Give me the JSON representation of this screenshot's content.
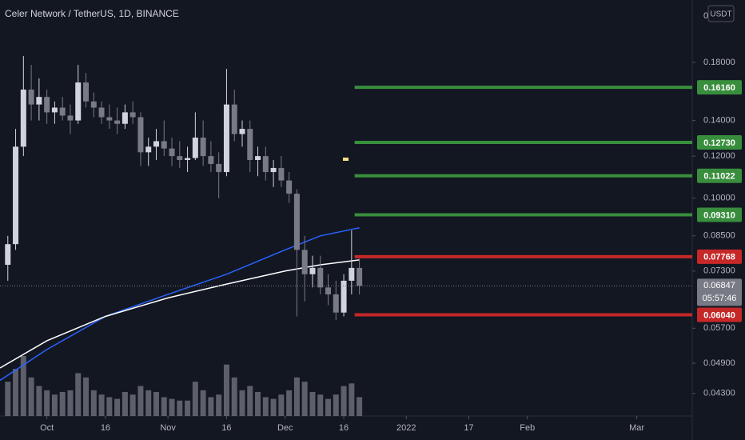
{
  "chart_data": {
    "type": "candlestick",
    "title": "Celer Network / TetherUS, 1D, BINANCE",
    "price_axis_unit": "USDT",
    "axis_top_label": "0",
    "log_scale": true,
    "ylim": [
      0.039,
      0.2357
    ],
    "yticks": [
      {
        "value": 0.18,
        "label": "0.18000"
      },
      {
        "value": 0.14,
        "label": "0.14000"
      },
      {
        "value": 0.12,
        "label": "0.12000"
      },
      {
        "value": 0.1,
        "label": "0.10000"
      },
      {
        "value": 0.085,
        "label": "0.08500"
      },
      {
        "value": 0.073,
        "label": "0.07300"
      },
      {
        "value": 0.057,
        "label": "0.05700"
      },
      {
        "value": 0.049,
        "label": "0.04900"
      },
      {
        "value": 0.043,
        "label": "0.04300"
      }
    ],
    "xlim": [
      "2021-09-19",
      "2022-03-15"
    ],
    "xticks": [
      {
        "value": "2021-10-01",
        "label": "Oct"
      },
      {
        "value": "2021-10-16",
        "label": "16"
      },
      {
        "value": "2021-11-01",
        "label": "Nov"
      },
      {
        "value": "2021-11-16",
        "label": "16"
      },
      {
        "value": "2021-12-01",
        "label": "Dec"
      },
      {
        "value": "2021-12-16",
        "label": "16"
      },
      {
        "value": "2022-01-01",
        "label": "2022"
      },
      {
        "value": "2022-01-17",
        "label": "17"
      },
      {
        "value": "2022-02-01",
        "label": "Feb"
      },
      {
        "value": "2022-03-01",
        "label": "Mar"
      }
    ],
    "up_color": "#d1d4dc",
    "down_color": "#787b86",
    "volume_color": "#5d606b",
    "x": [
      "2021-09-21",
      "2021-09-23",
      "2021-09-25",
      "2021-09-27",
      "2021-09-29",
      "2021-10-01",
      "2021-10-03",
      "2021-10-05",
      "2021-10-07",
      "2021-10-09",
      "2021-10-11",
      "2021-10-13",
      "2021-10-15",
      "2021-10-17",
      "2021-10-19",
      "2021-10-21",
      "2021-10-23",
      "2021-10-25",
      "2021-10-27",
      "2021-10-29",
      "2021-10-31",
      "2021-11-02",
      "2021-11-04",
      "2021-11-06",
      "2021-11-08",
      "2021-11-10",
      "2021-11-12",
      "2021-11-14",
      "2021-11-16",
      "2021-11-18",
      "2021-11-20",
      "2021-11-22",
      "2021-11-24",
      "2021-11-26",
      "2021-11-28",
      "2021-11-30",
      "2021-12-02",
      "2021-12-04",
      "2021-12-06",
      "2021-12-08",
      "2021-12-10",
      "2021-12-12",
      "2021-12-14",
      "2021-12-16",
      "2021-12-18",
      "2021-12-20"
    ],
    "open": [
      0.075,
      0.082,
      0.125,
      0.16,
      0.15,
      0.155,
      0.145,
      0.148,
      0.143,
      0.14,
      0.165,
      0.152,
      0.148,
      0.142,
      0.14,
      0.138,
      0.145,
      0.142,
      0.122,
      0.125,
      0.128,
      0.124,
      0.12,
      0.118,
      0.119,
      0.13,
      0.12,
      0.116,
      0.112,
      0.15,
      0.132,
      0.135,
      0.118,
      0.12,
      0.112,
      0.114,
      0.108,
      0.102,
      0.08,
      0.072,
      0.074,
      0.068,
      0.066,
      0.061,
      0.07,
      0.074
    ],
    "high": [
      0.085,
      0.135,
      0.185,
      0.178,
      0.168,
      0.16,
      0.152,
      0.155,
      0.15,
      0.178,
      0.172,
      0.158,
      0.152,
      0.15,
      0.148,
      0.15,
      0.152,
      0.145,
      0.13,
      0.135,
      0.14,
      0.13,
      0.128,
      0.125,
      0.145,
      0.14,
      0.128,
      0.122,
      0.175,
      0.16,
      0.14,
      0.14,
      0.125,
      0.125,
      0.118,
      0.12,
      0.112,
      0.104,
      0.085,
      0.078,
      0.078,
      0.072,
      0.07,
      0.072,
      0.087,
      0.077
    ],
    "low": [
      0.07,
      0.08,
      0.12,
      0.14,
      0.14,
      0.138,
      0.138,
      0.14,
      0.132,
      0.138,
      0.148,
      0.142,
      0.138,
      0.135,
      0.132,
      0.135,
      0.138,
      0.115,
      0.115,
      0.118,
      0.12,
      0.115,
      0.114,
      0.112,
      0.118,
      0.115,
      0.112,
      0.1,
      0.11,
      0.128,
      0.125,
      0.112,
      0.11,
      0.108,
      0.105,
      0.105,
      0.098,
      0.06,
      0.064,
      0.068,
      0.066,
      0.063,
      0.059,
      0.06,
      0.066,
      0.066
    ],
    "close": [
      0.082,
      0.125,
      0.16,
      0.15,
      0.155,
      0.145,
      0.148,
      0.143,
      0.14,
      0.165,
      0.152,
      0.148,
      0.142,
      0.14,
      0.138,
      0.145,
      0.142,
      0.122,
      0.125,
      0.128,
      0.124,
      0.12,
      0.118,
      0.119,
      0.13,
      0.12,
      0.116,
      0.112,
      0.15,
      0.132,
      0.135,
      0.118,
      0.12,
      0.112,
      0.114,
      0.108,
      0.102,
      0.08,
      0.072,
      0.074,
      0.068,
      0.066,
      0.061,
      0.07,
      0.074,
      0.0685
    ],
    "volume": [
      40,
      55,
      70,
      45,
      35,
      30,
      25,
      28,
      30,
      50,
      45,
      30,
      25,
      22,
      20,
      28,
      25,
      35,
      30,
      28,
      22,
      20,
      18,
      18,
      40,
      30,
      22,
      25,
      60,
      45,
      30,
      35,
      28,
      22,
      20,
      25,
      30,
      45,
      40,
      28,
      25,
      20,
      25,
      35,
      38,
      22
    ],
    "series": [
      {
        "color": "#2962ff",
        "x": [
          "2021-09-19",
          "2021-10-01",
          "2021-10-16",
          "2021-11-01",
          "2021-11-16",
          "2021-12-01",
          "2021-12-10",
          "2021-12-20"
        ],
        "values": [
          0.0455,
          0.052,
          0.06,
          0.066,
          0.072,
          0.08,
          0.085,
          0.088
        ]
      },
      {
        "color": "#ffffff",
        "x": [
          "2021-09-19",
          "2021-10-01",
          "2021-10-16",
          "2021-11-01",
          "2021-11-16",
          "2021-12-01",
          "2021-12-10",
          "2021-12-20"
        ],
        "values": [
          0.048,
          0.054,
          0.06,
          0.065,
          0.069,
          0.073,
          0.075,
          0.0766
        ]
      }
    ],
    "levels": [
      {
        "value": 0.1616,
        "label": "0.16160",
        "color": "#388e3c"
      },
      {
        "value": 0.1273,
        "label": "0.12730",
        "color": "#388e3c"
      },
      {
        "value": 0.11022,
        "label": "0.11022",
        "color": "#388e3c"
      },
      {
        "value": 0.0931,
        "label": "0.09310",
        "color": "#388e3c"
      },
      {
        "value": 0.07768,
        "label": "0.07768",
        "color": "#c62828"
      },
      {
        "value": 0.0604,
        "label": "0.06040",
        "color": "#c62828"
      }
    ],
    "last_price": 0.06847,
    "countdown": "05:57:46"
  }
}
